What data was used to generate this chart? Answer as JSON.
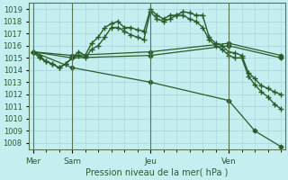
{
  "xlabel": "Pression niveau de la mer( hPa )",
  "ylim": [
    1007.5,
    1019.5
  ],
  "yticks": [
    1008,
    1009,
    1010,
    1011,
    1012,
    1013,
    1014,
    1015,
    1016,
    1017,
    1018,
    1019
  ],
  "background_color": "#c5eef0",
  "grid_color": "#a8d4d8",
  "line_color": "#2a5c2a",
  "day_labels": [
    "Mer",
    "Sam",
    "Jeu",
    "Ven"
  ],
  "day_positions": [
    0,
    3,
    9,
    15
  ],
  "vline_positions": [
    0,
    3,
    9,
    15
  ],
  "xlim": [
    -0.3,
    19.3
  ],
  "lines": [
    {
      "x": [
        0,
        0.5,
        1,
        1.5,
        2,
        2.5,
        3,
        3.5,
        4,
        4.5,
        5,
        5.5,
        6,
        6.5,
        7,
        7.5,
        8,
        8.5,
        9,
        9.5,
        10,
        10.5,
        11,
        11.5,
        12,
        12.5,
        13,
        13.5,
        14,
        14.5,
        15,
        15.5,
        16,
        16.5,
        17,
        17.5,
        18,
        18.5,
        19
      ],
      "y": [
        1015.5,
        1015.2,
        1014.7,
        1014.5,
        1014.2,
        1014.5,
        1015.0,
        1015.5,
        1015.2,
        1016.2,
        1016.7,
        1017.5,
        1017.8,
        1018.0,
        1017.5,
        1017.5,
        1017.3,
        1017.2,
        1019.0,
        1018.5,
        1018.2,
        1018.5,
        1018.5,
        1018.8,
        1018.7,
        1018.5,
        1018.5,
        1016.7,
        1016.2,
        1016.0,
        1015.5,
        1015.4,
        1015.2,
        1013.8,
        1013.3,
        1012.7,
        1012.5,
        1012.2,
        1012.0
      ],
      "marker": "+",
      "markersize": 4,
      "linewidth": 1.0
    },
    {
      "x": [
        0,
        0.5,
        1,
        1.5,
        2,
        2.5,
        3,
        3.5,
        4,
        4.5,
        5,
        5.5,
        6,
        6.5,
        7,
        7.5,
        8,
        8.5,
        9,
        9.5,
        10,
        10.5,
        11,
        11.5,
        12,
        12.5,
        13,
        13.5,
        14,
        14.5,
        15,
        15.5,
        16,
        16.5,
        17,
        17.5,
        18,
        18.5,
        19
      ],
      "y": [
        1015.5,
        1015.0,
        1014.7,
        1014.5,
        1014.2,
        1014.5,
        1015.0,
        1015.2,
        1015.0,
        1015.7,
        1016.0,
        1016.7,
        1017.5,
        1017.5,
        1017.2,
        1016.9,
        1016.7,
        1016.5,
        1018.8,
        1018.2,
        1018.0,
        1018.2,
        1018.5,
        1018.5,
        1018.2,
        1018.0,
        1017.5,
        1016.5,
        1016.0,
        1015.7,
        1015.2,
        1015.0,
        1015.0,
        1013.5,
        1012.8,
        1012.2,
        1011.8,
        1011.2,
        1010.8
      ],
      "marker": "+",
      "markersize": 4,
      "linewidth": 1.0
    },
    {
      "x": [
        0,
        3,
        9,
        15,
        19
      ],
      "y": [
        1015.5,
        1015.2,
        1015.5,
        1016.2,
        1015.2
      ],
      "marker": "D",
      "markersize": 2.5,
      "linewidth": 0.9
    },
    {
      "x": [
        0,
        3,
        9,
        15,
        19
      ],
      "y": [
        1015.5,
        1015.0,
        1015.2,
        1016.0,
        1015.0
      ],
      "marker": "D",
      "markersize": 2.5,
      "linewidth": 0.9
    },
    {
      "x": [
        0,
        3,
        9,
        15,
        17,
        19
      ],
      "y": [
        1015.5,
        1014.2,
        1013.0,
        1011.5,
        1009.0,
        1007.7
      ],
      "marker": "D",
      "markersize": 2.5,
      "linewidth": 0.9
    }
  ]
}
